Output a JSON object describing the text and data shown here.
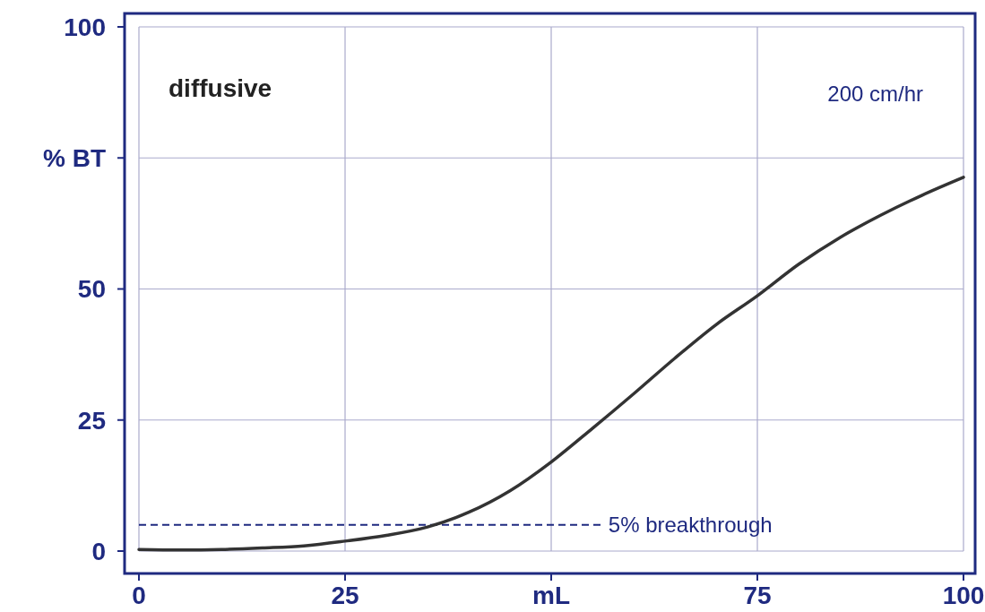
{
  "chart_data": {
    "type": "line",
    "annotations": [
      "diffusive",
      "200 cm/hr"
    ],
    "x": [
      0,
      5,
      10,
      15,
      20,
      25,
      30,
      35,
      40,
      45,
      50,
      55,
      60,
      65,
      70,
      75,
      80,
      85,
      90,
      95,
      100
    ],
    "series": [
      {
        "color": "#333333",
        "values": [
          0.3,
          0.2,
          0.3,
          0.6,
          1,
          1.9,
          3,
          4.6,
          7.4,
          11.5,
          17,
          23.4,
          30,
          36.8,
          43.2,
          48.7,
          54.7,
          59.8,
          64.1,
          67.9,
          71.3
        ]
      }
    ],
    "xlim": [
      0,
      100
    ],
    "ylim": [
      0,
      100
    ],
    "xticks": [
      0,
      25,
      {
        "value": 50,
        "label": "mL"
      },
      75,
      100
    ],
    "yticks": [
      0,
      25,
      50,
      {
        "value": 75,
        "label": "% BT"
      },
      100
    ],
    "grid": true,
    "line_style": "solid",
    "marker": "none",
    "ref_lines": [
      {
        "axis": "y",
        "value": 5,
        "label": "5% breakthrough",
        "color": "#1f2a80",
        "line_style": "dashed"
      }
    ]
  }
}
